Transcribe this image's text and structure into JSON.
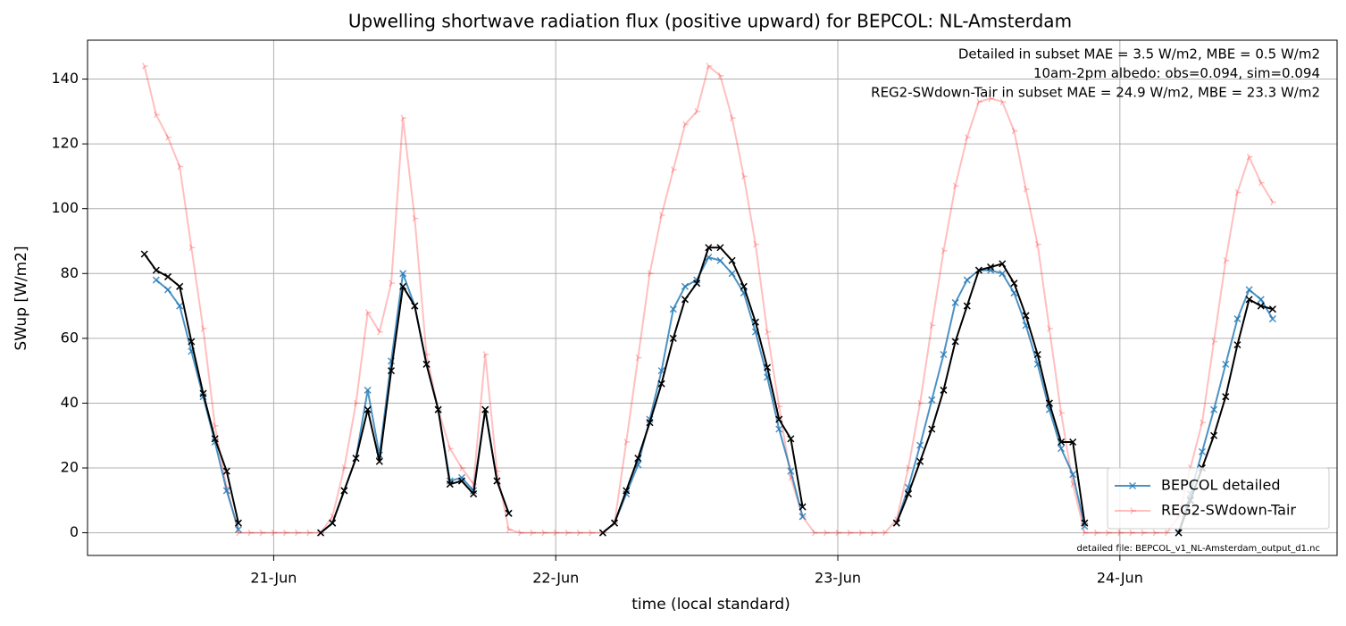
{
  "chart_data": {
    "type": "line",
    "title": "Upwelling shortwave radiation flux (positive upward) for BEPCOL: NL-Amsterdam",
    "xlabel": "time (local standard)",
    "ylabel": "SWup [W/m2]",
    "xlim": [
      20.34,
      24.77
    ],
    "ylim": [
      -7,
      152
    ],
    "xticks": [
      {
        "value": 21,
        "label": "21-Jun"
      },
      {
        "value": 22,
        "label": "22-Jun"
      },
      {
        "value": 23,
        "label": "23-Jun"
      },
      {
        "value": 24,
        "label": "24-Jun"
      }
    ],
    "yticks": [
      0,
      20,
      40,
      60,
      80,
      100,
      120,
      140
    ],
    "grid": true,
    "legend": "lower right",
    "x": [
      20.5417,
      20.5833,
      20.625,
      20.6667,
      20.7083,
      20.75,
      20.7917,
      20.8333,
      20.875,
      20.9167,
      20.9583,
      21,
      21.0417,
      21.0833,
      21.125,
      21.1667,
      21.2083,
      21.25,
      21.2917,
      21.3333,
      21.375,
      21.4167,
      21.4583,
      21.5,
      21.5417,
      21.5833,
      21.625,
      21.6667,
      21.7083,
      21.75,
      21.7917,
      21.8333,
      21.875,
      21.9167,
      21.9583,
      22,
      22.0417,
      22.0833,
      22.125,
      22.1667,
      22.2083,
      22.25,
      22.2917,
      22.3333,
      22.375,
      22.4167,
      22.4583,
      22.5,
      22.5417,
      22.5833,
      22.625,
      22.6667,
      22.7083,
      22.75,
      22.7917,
      22.8333,
      22.875,
      22.9167,
      22.9583,
      23,
      23.0417,
      23.0833,
      23.125,
      23.1667,
      23.2083,
      23.25,
      23.2917,
      23.3333,
      23.375,
      23.4167,
      23.4583,
      23.5,
      23.5417,
      23.5833,
      23.625,
      23.6667,
      23.7083,
      23.75,
      23.7917,
      23.8333,
      23.875,
      23.9167,
      23.9583,
      24,
      24.0417,
      24.0833,
      24.125,
      24.1667,
      24.2083,
      24.25,
      24.2917,
      24.3333,
      24.375,
      24.4167,
      24.4583,
      24.5,
      24.5417
    ],
    "series": [
      {
        "name": "BEPCOL detailed",
        "color": "#1f77b4",
        "alpha": 0.8,
        "marker": "x",
        "values": [
          null,
          78,
          75,
          70,
          56,
          42,
          28,
          13,
          1,
          null,
          null,
          null,
          null,
          null,
          null,
          0,
          3,
          13,
          23,
          44,
          24,
          53,
          80,
          70,
          52,
          38,
          16,
          17,
          13,
          38,
          16,
          6,
          null,
          null,
          null,
          null,
          null,
          null,
          null,
          0,
          3,
          12,
          21,
          35,
          50,
          69,
          76,
          78,
          85,
          84,
          80,
          74,
          62,
          48,
          32,
          19,
          5,
          null,
          null,
          null,
          null,
          null,
          null,
          null,
          3,
          14,
          27,
          41,
          55,
          71,
          78,
          81,
          81,
          80,
          74,
          64,
          52,
          38,
          26,
          18,
          2,
          null,
          null,
          null,
          null,
          null,
          null,
          null,
          0,
          12,
          25,
          38,
          52,
          66,
          75,
          72,
          66
        ]
      },
      {
        "name": "REG2-SWdown-Tair",
        "color": "#ff0000",
        "alpha": 0.25,
        "marker": "tri",
        "values": [
          144,
          129,
          122,
          113,
          88,
          63,
          33,
          14,
          0,
          0,
          0,
          0,
          0,
          0,
          0,
          0,
          5,
          20,
          40,
          68,
          62,
          77,
          128,
          97,
          55,
          38,
          26,
          20,
          15,
          55,
          19,
          1,
          0,
          0,
          0,
          0,
          0,
          0,
          0,
          0,
          3,
          28,
          54,
          80,
          98,
          112,
          126,
          130,
          144,
          141,
          128,
          110,
          89,
          62,
          39,
          17,
          5,
          0,
          0,
          0,
          0,
          0,
          0,
          0,
          4,
          20,
          40,
          64,
          87,
          107,
          122,
          133,
          134,
          133,
          124,
          106,
          89,
          63,
          37,
          15,
          0,
          0,
          0,
          0,
          0,
          0,
          0,
          0,
          5,
          20,
          34,
          59,
          84,
          105,
          116,
          108,
          102
        ]
      },
      {
        "color": "#000000",
        "alpha": 1,
        "marker": "x",
        "values": [
          86,
          81,
          79,
          76,
          59,
          43,
          29,
          19,
          3,
          null,
          null,
          null,
          null,
          null,
          null,
          0,
          3,
          13,
          23,
          38,
          22,
          50,
          76,
          70,
          52,
          38,
          15,
          16,
          12,
          38,
          16,
          6,
          null,
          null,
          null,
          null,
          null,
          null,
          null,
          0,
          3,
          13,
          23,
          34,
          46,
          60,
          72,
          77,
          88,
          88,
          84,
          76,
          65,
          51,
          35,
          29,
          8,
          null,
          null,
          null,
          null,
          null,
          null,
          null,
          3,
          12,
          22,
          32,
          44,
          59,
          70,
          81,
          82,
          83,
          77,
          67,
          55,
          40,
          28,
          28,
          3,
          null,
          null,
          null,
          null,
          null,
          null,
          null,
          0,
          10,
          20,
          30,
          42,
          58,
          72,
          70,
          69
        ]
      }
    ],
    "annotations": [
      {
        "text": "Detailed in subset MAE = 3.5 W/m2, MBE = 0.5 W/m2",
        "color": "#1f77b4"
      },
      {
        "text": "10am-2pm albedo: obs=0.094, sim=0.094",
        "color": "#000000"
      },
      {
        "text": "REG2-SWdown-Tair in subset MAE = 24.9 W/m2, MBE = 23.3 W/m2",
        "color": "#ff0000"
      }
    ],
    "footnote": "detailed file: BEPCOL_v1_NL-Amsterdam_output_d1.nc"
  }
}
